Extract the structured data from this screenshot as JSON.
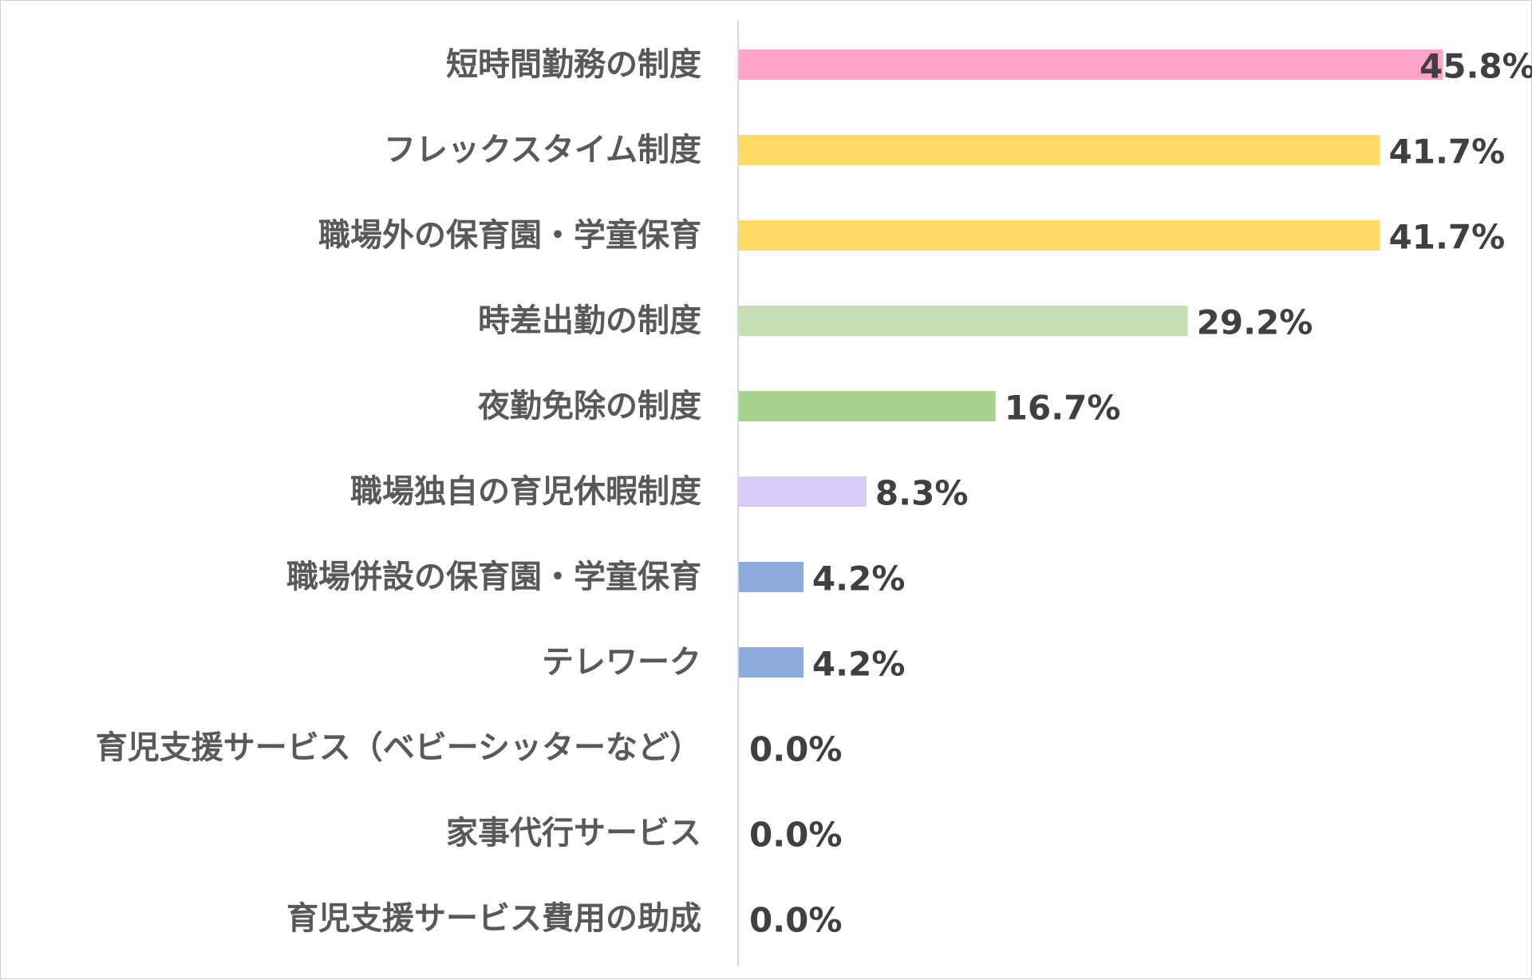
{
  "chart_data": {
    "type": "bar",
    "orientation": "horizontal",
    "title": "",
    "xlabel": "",
    "ylabel": "",
    "xlim": [
      0,
      46.5
    ],
    "grid": false,
    "legend": "none",
    "categories": [
      "短時間勤務の制度",
      "フレックスタイム制度",
      "職場外の保育園・学童保育",
      "時差出勤の制度",
      "夜勤免除の制度",
      "職場独自の育児休暇制度",
      "職場併設の保育園・学童保育",
      "テレワーク",
      "育児支援サービス（ベビーシッターなど）",
      "家事代行サービス",
      "育児支援サービス費用の助成"
    ],
    "values": [
      45.8,
      41.7,
      41.7,
      29.2,
      16.7,
      8.3,
      4.2,
      4.2,
      0.0,
      0.0,
      0.0
    ],
    "value_labels": [
      "45.8%",
      "41.7%",
      "41.7%",
      "29.2%",
      "16.7%",
      "8.3%",
      "4.2%",
      "4.2%",
      "0.0%",
      "0.0%",
      "0.0%"
    ],
    "bar_colors": [
      "#FFA3CB",
      "#FFD966",
      "#FFD966",
      "#C5E0B4",
      "#A9D18E",
      "#D5CCF8",
      "#8FAADC",
      "#8FAADC",
      "#8FAADC",
      "#8FAADC",
      "#8FAADC"
    ],
    "axis_color": "#D9D9D9",
    "category_label_color": "#595959",
    "value_label_color": "#404040"
  }
}
